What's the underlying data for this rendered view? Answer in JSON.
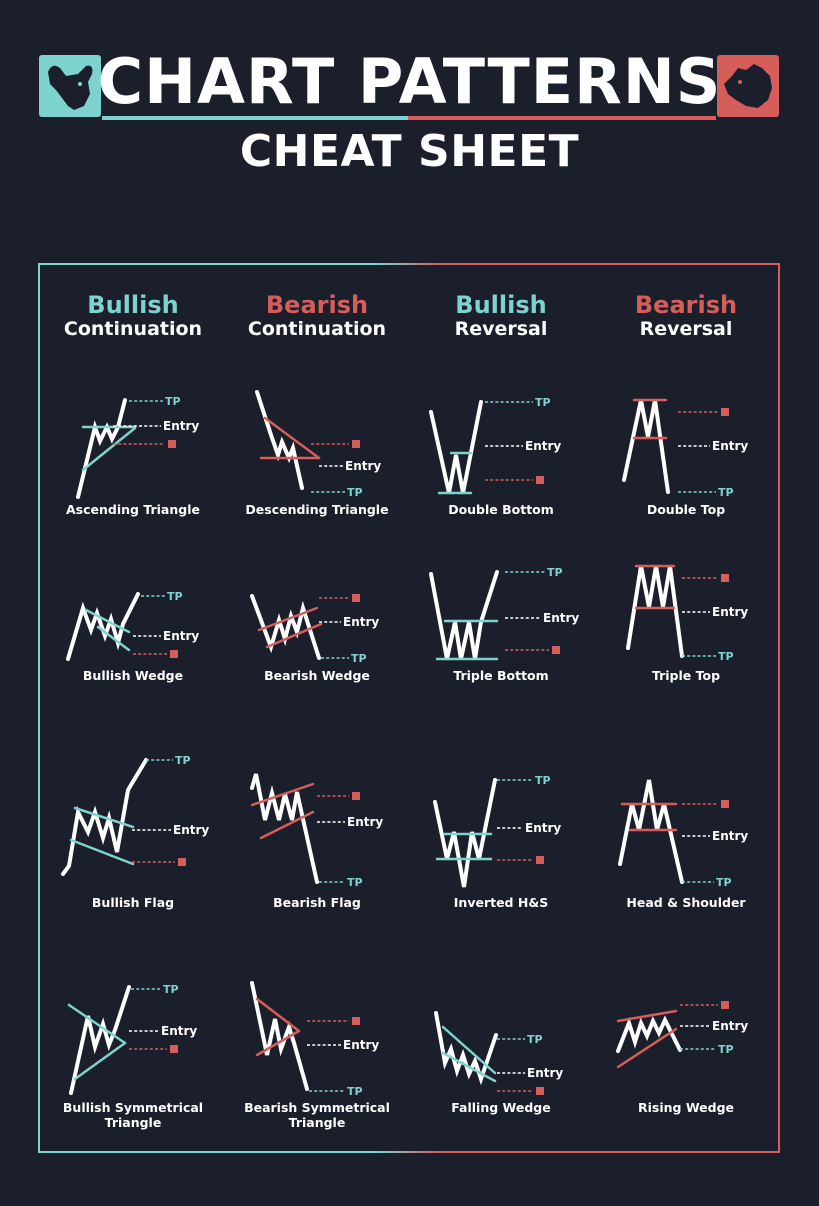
{
  "header": {
    "title_main": "CHART PATTERNS",
    "title_sub": "CHEAT SHEET",
    "left_logo_icon": "bull-head-icon",
    "right_logo_icon": "bear-head-icon"
  },
  "colors": {
    "background": "#1b1f2b",
    "bullish": "#7ed3ce",
    "bearish": "#d55d5a",
    "line": "#ffffff"
  },
  "columns": [
    {
      "kind": "Bullish",
      "phase": "Continuation",
      "tone": "bullish"
    },
    {
      "kind": "Bearish",
      "phase": "Continuation",
      "tone": "bearish"
    },
    {
      "kind": "Bullish",
      "phase": "Reversal",
      "tone": "bullish"
    },
    {
      "kind": "Bearish",
      "phase": "Reversal",
      "tone": "bearish"
    }
  ],
  "levels": {
    "tp": "TP",
    "entry": "Entry"
  },
  "patterns": [
    {
      "name": "Ascending Triangle"
    },
    {
      "name": "Descending Triangle"
    },
    {
      "name": "Double Bottom"
    },
    {
      "name": "Double Top"
    },
    {
      "name": "Bullish Wedge"
    },
    {
      "name": "Bearish Wedge"
    },
    {
      "name": "Triple Bottom"
    },
    {
      "name": "Triple Top"
    },
    {
      "name": "Bullish Flag"
    },
    {
      "name": "Bearish Flag"
    },
    {
      "name": "Inverted H&S"
    },
    {
      "name": "Head & Shoulder"
    },
    {
      "name": "Bullish Symmetrical Triangle"
    },
    {
      "name": "Bearish Symmetrical Triangle"
    },
    {
      "name": "Falling Wedge"
    },
    {
      "name": "Rising Wedge"
    }
  ]
}
